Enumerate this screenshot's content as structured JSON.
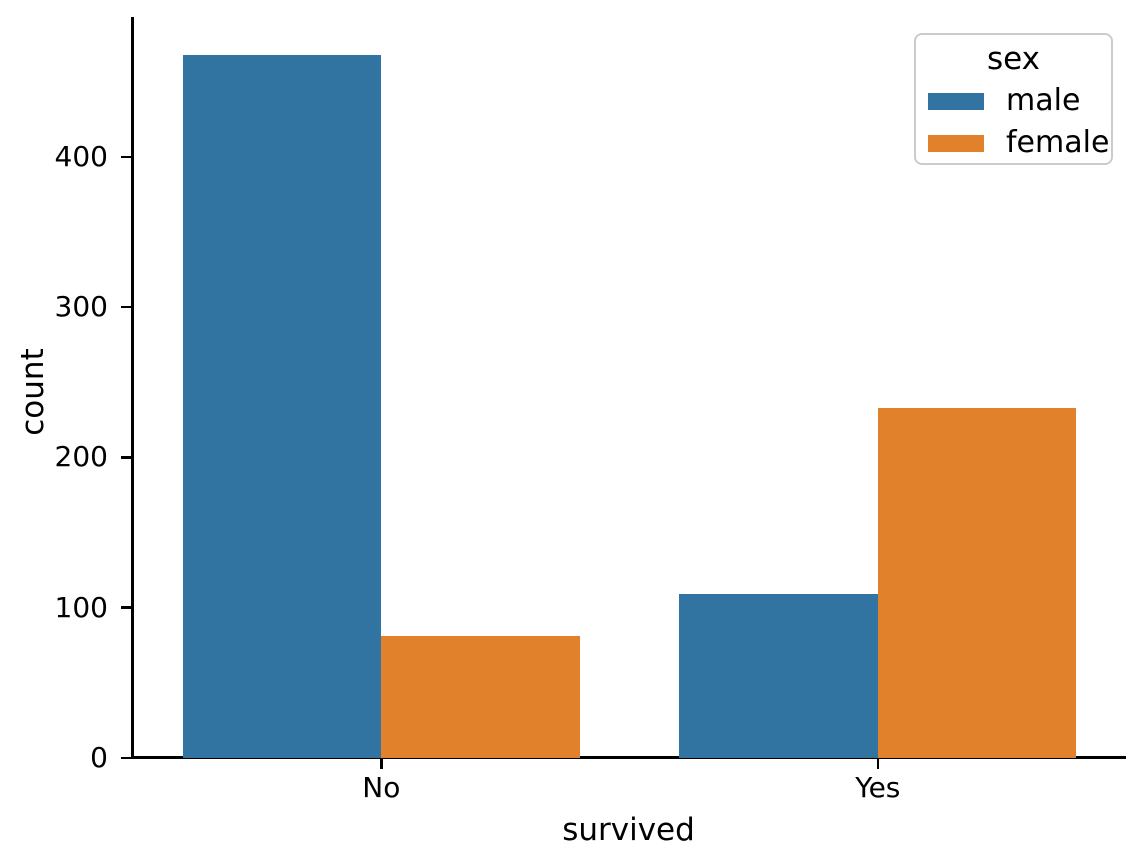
{
  "chart_data": {
    "type": "bar",
    "title": "",
    "xlabel": "survived",
    "ylabel": "count",
    "categories": [
      "No",
      "Yes"
    ],
    "series": [
      {
        "name": "male",
        "color": "#3274a1",
        "values": [
          468,
          109
        ]
      },
      {
        "name": "female",
        "color": "#e1812c",
        "values": [
          81,
          233
        ]
      }
    ],
    "yticks": [
      0,
      100,
      200,
      300,
      400
    ],
    "ylim": [
      0,
      493
    ],
    "xlim": [
      -0.5,
      1.5
    ],
    "bar_width_units": 0.4,
    "grid": false,
    "legend": {
      "title": "sex",
      "position": "upper-right",
      "entries": [
        "male",
        "female"
      ]
    },
    "colors": {
      "background": "#ffffff",
      "spine": "#000000",
      "text": "#000000",
      "legend_border": "#cbcbcb"
    }
  }
}
